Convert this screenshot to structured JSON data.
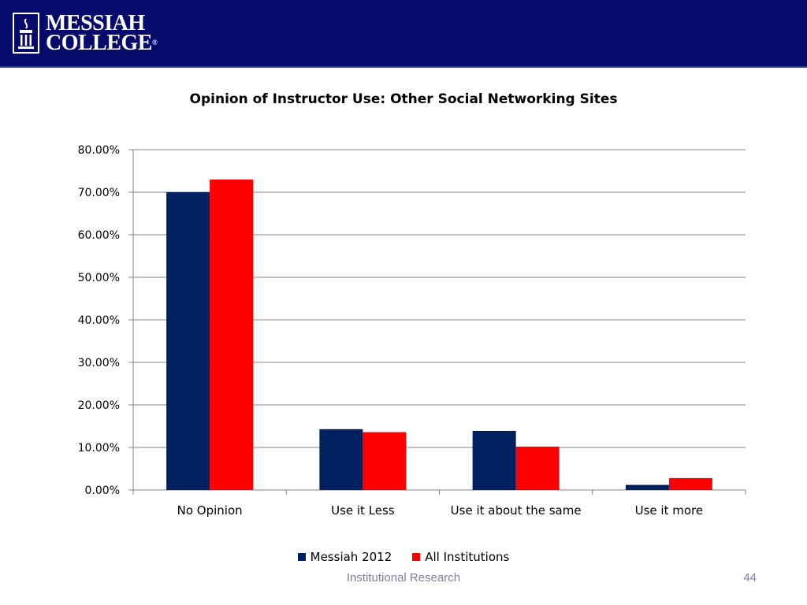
{
  "header": {
    "logo_line1": "MESSIAH",
    "logo_line2": "COLLEGE",
    "logo_registered": "®",
    "background_color": "#050a6b"
  },
  "chart_data": {
    "type": "bar",
    "title": "Opinion of Instructor Use: Other Social Networking Sites",
    "categories": [
      "No Opinion",
      "Use it Less",
      "Use it about the same",
      "Use it more"
    ],
    "series": [
      {
        "name": "Messiah 2012",
        "color": "#002060",
        "values": [
          70.0,
          14.3,
          13.9,
          1.2
        ]
      },
      {
        "name": "All Institutions",
        "color": "#ff0000",
        "values": [
          73.0,
          13.6,
          10.2,
          2.8
        ]
      }
    ],
    "ylim": [
      0,
      80
    ],
    "yticks": [
      "0.00%",
      "10.00%",
      "20.00%",
      "30.00%",
      "40.00%",
      "50.00%",
      "60.00%",
      "70.00%",
      "80.00%"
    ],
    "grid": true,
    "legend_position": "bottom"
  },
  "footer": {
    "source": "Institutional Research",
    "page_number": "44"
  }
}
